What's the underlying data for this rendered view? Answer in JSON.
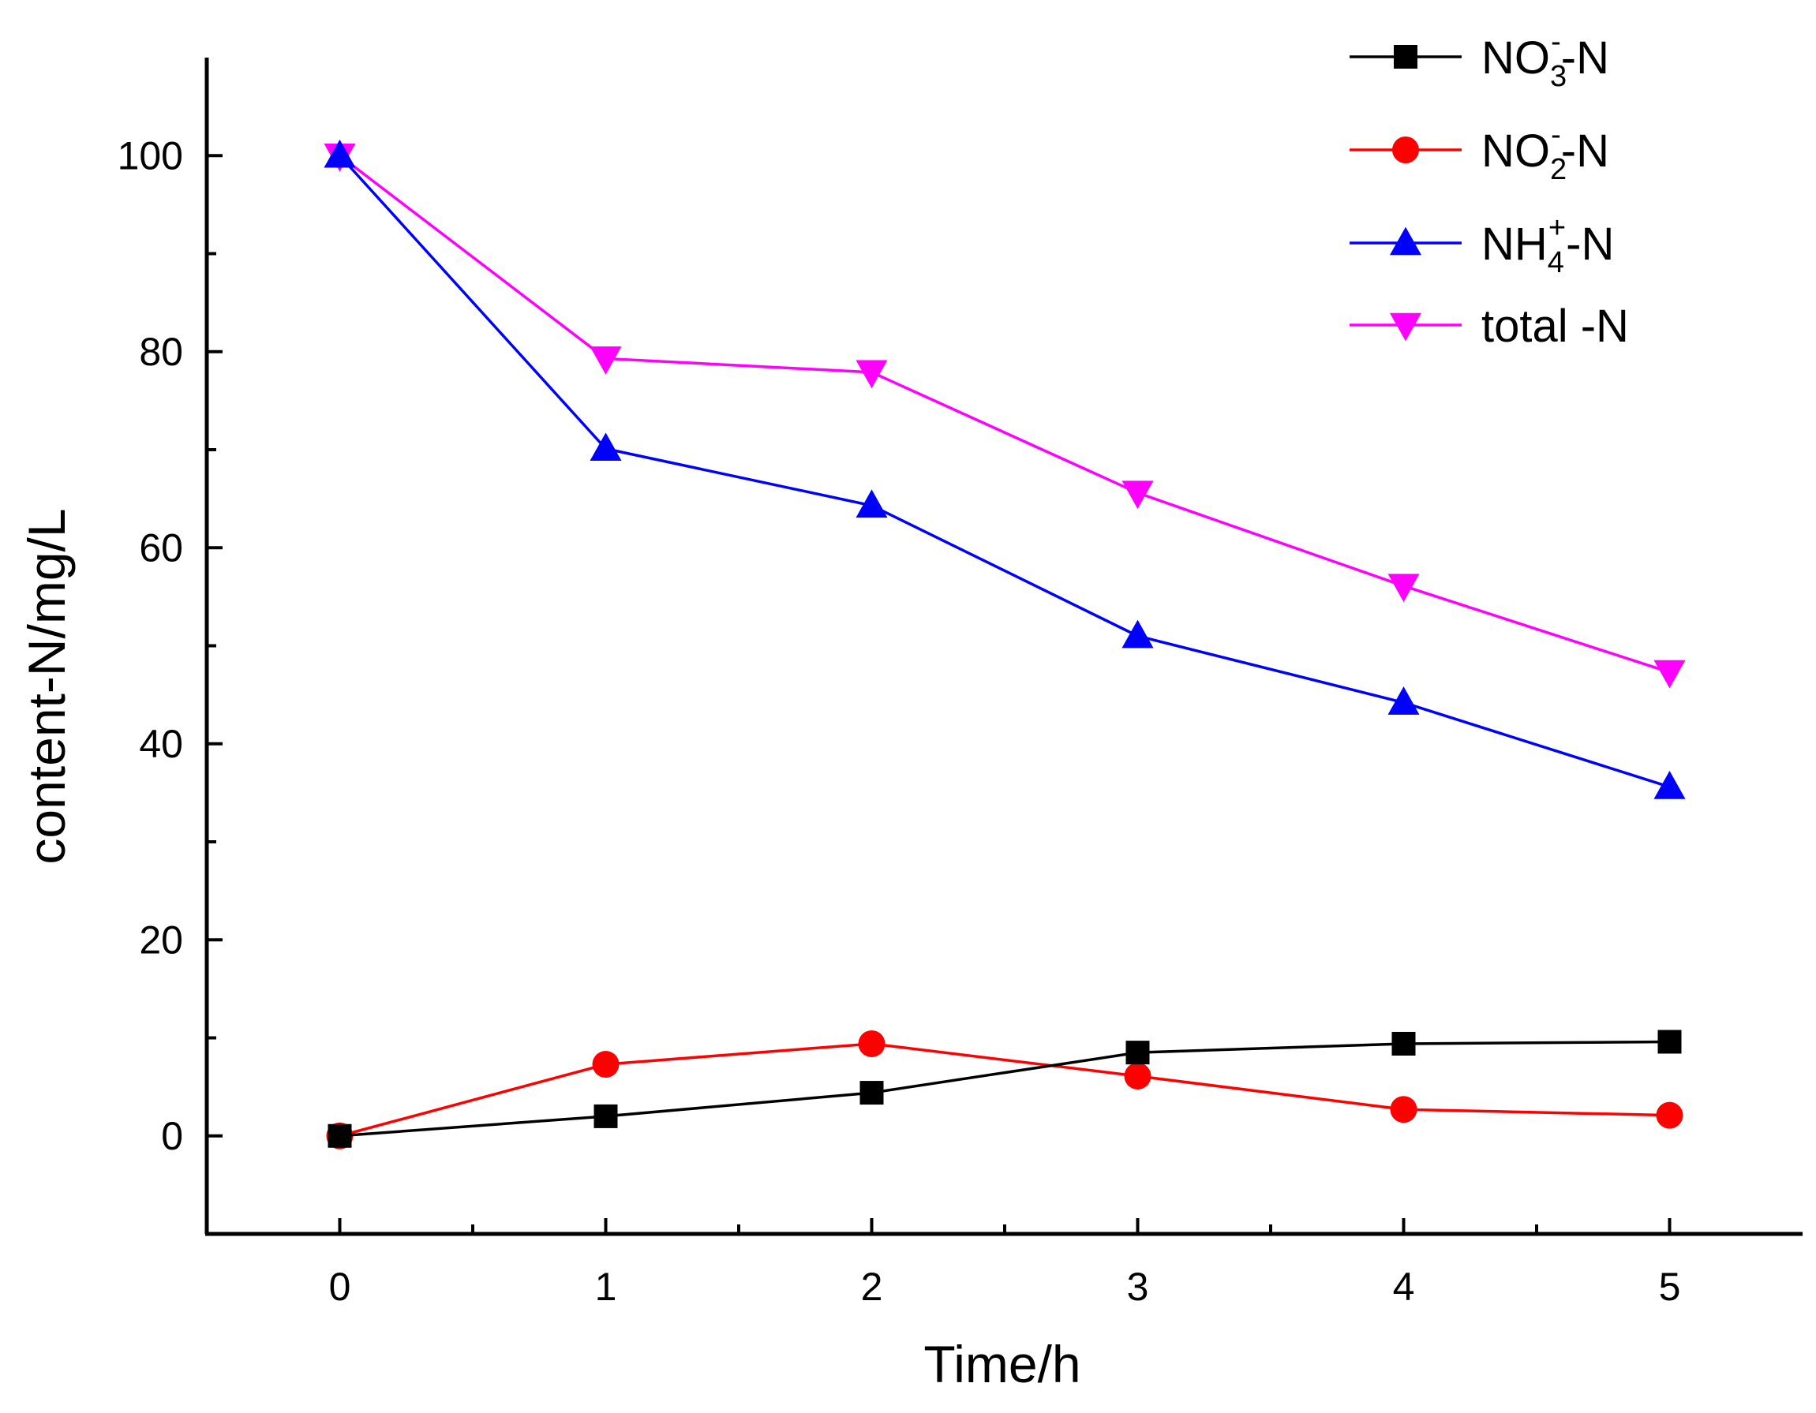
{
  "chart_data": {
    "type": "line",
    "title": "",
    "xlabel": "Time/h",
    "ylabel": "content-N/mg/L",
    "xlim": [
      -0.5,
      5.5
    ],
    "ylim": [
      -10,
      110
    ],
    "x_ticks": [
      0,
      1,
      2,
      3,
      4,
      5
    ],
    "y_ticks": [
      0,
      20,
      40,
      60,
      80,
      100
    ],
    "x_tick_labels": [
      "0",
      "1",
      "2",
      "3",
      "4",
      "5"
    ],
    "y_tick_labels": [
      "0",
      "20",
      "40",
      "60",
      "80",
      "100"
    ],
    "grid": false,
    "legend_position": "top-right",
    "x": [
      0,
      1,
      2,
      3,
      4,
      5
    ],
    "series": [
      {
        "name": "NO3--N",
        "legend": {
          "base": "NO",
          "sub": "3",
          "sup": "-",
          "suffix": "-N"
        },
        "color": "#000000",
        "marker": "square",
        "values": [
          0,
          2.0,
          4.4,
          8.5,
          9.4,
          9.6
        ]
      },
      {
        "name": "NO2--N",
        "legend": {
          "base": "NO",
          "sub": "2",
          "sup": "-",
          "suffix": "-N"
        },
        "color": "#ff0000",
        "marker": "circle",
        "values": [
          0,
          7.3,
          9.4,
          6.1,
          2.7,
          2.1
        ]
      },
      {
        "name": "NH4+-N",
        "legend": {
          "base": "NH",
          "sub": "4",
          "sup": "+",
          "suffix": "-N"
        },
        "color": "#0000ff",
        "marker": "triangle-up",
        "values": [
          100,
          70.1,
          64.3,
          51.0,
          44.2,
          35.6
        ]
      },
      {
        "name": "total -N",
        "legend": {
          "base": "total -N",
          "sub": "",
          "sup": "",
          "suffix": ""
        },
        "color": "#ff00ff",
        "marker": "triangle-down",
        "values": [
          100,
          79.3,
          77.9,
          65.6,
          56.1,
          47.3
        ]
      }
    ]
  }
}
